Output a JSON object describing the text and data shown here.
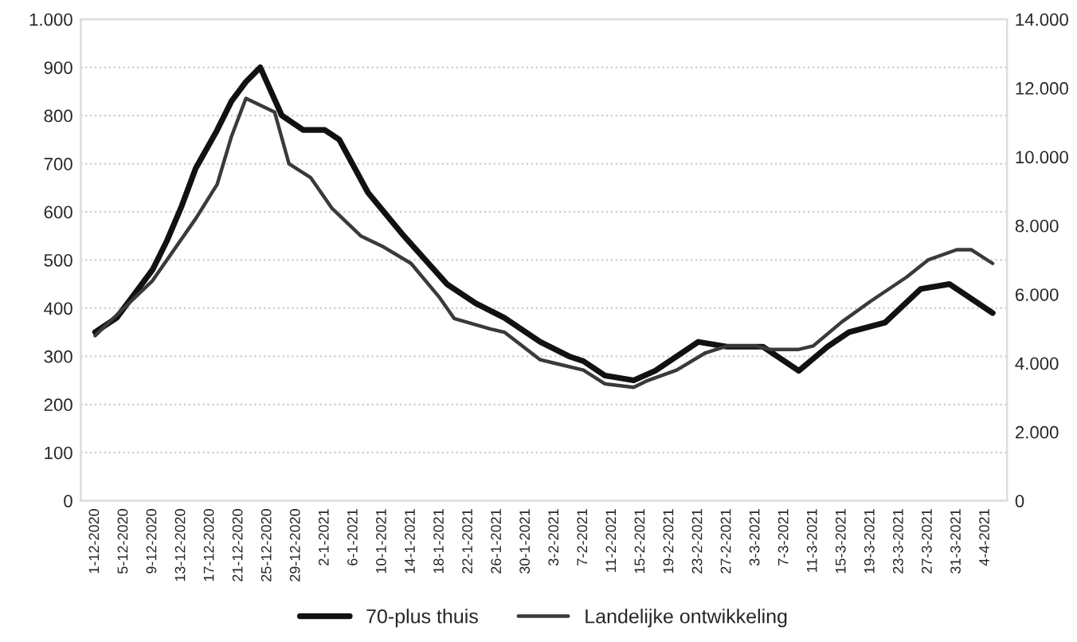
{
  "chart_data": {
    "type": "line",
    "legend": "bottom",
    "grid": "y",
    "marker": "none",
    "line_style": "solid",
    "xlim": [
      "2020-11-29",
      "2021-04-07"
    ],
    "xticks": [
      {
        "value": "2020-12-01",
        "label": "1-12-2020"
      },
      {
        "value": "2020-12-05",
        "label": "5-12-2020"
      },
      {
        "value": "2020-12-09",
        "label": "9-12-2020"
      },
      {
        "value": "2020-12-13",
        "label": "13-12-2020"
      },
      {
        "value": "2020-12-17",
        "label": "17-12-2020"
      },
      {
        "value": "2020-12-21",
        "label": "21-12-2020"
      },
      {
        "value": "2020-12-25",
        "label": "25-12-2020"
      },
      {
        "value": "2020-12-29",
        "label": "29-12-2020"
      },
      {
        "value": "2021-01-02",
        "label": "2-1-2021"
      },
      {
        "value": "2021-01-06",
        "label": "6-1-2021"
      },
      {
        "value": "2021-01-10",
        "label": "10-1-2021"
      },
      {
        "value": "2021-01-14",
        "label": "14-1-2021"
      },
      {
        "value": "2021-01-18",
        "label": "18-1-2021"
      },
      {
        "value": "2021-01-22",
        "label": "22-1-2021"
      },
      {
        "value": "2021-01-26",
        "label": "26-1-2021"
      },
      {
        "value": "2021-01-30",
        "label": "30-1-2021"
      },
      {
        "value": "2021-02-03",
        "label": "3-2-2021"
      },
      {
        "value": "2021-02-07",
        "label": "7-2-2021"
      },
      {
        "value": "2021-02-11",
        "label": "11-2-2021"
      },
      {
        "value": "2021-02-15",
        "label": "15-2-2021"
      },
      {
        "value": "2021-02-19",
        "label": "19-2-2021"
      },
      {
        "value": "2021-02-23",
        "label": "23-2-2021"
      },
      {
        "value": "2021-02-27",
        "label": "27-2-2021"
      },
      {
        "value": "2021-03-03",
        "label": "3-3-2021"
      },
      {
        "value": "2021-03-07",
        "label": "7-3-2021"
      },
      {
        "value": "2021-03-11",
        "label": "11-3-2021"
      },
      {
        "value": "2021-03-15",
        "label": "15-3-2021"
      },
      {
        "value": "2021-03-19",
        "label": "19-3-2021"
      },
      {
        "value": "2021-03-23",
        "label": "23-3-2021"
      },
      {
        "value": "2021-03-27",
        "label": "27-3-2021"
      },
      {
        "value": "2021-03-31",
        "label": "31-3-2021"
      },
      {
        "value": "2021-04-04",
        "label": "4-4-2021"
      }
    ],
    "ylim": [
      0,
      1000
    ],
    "yticks": [
      0,
      100,
      200,
      300,
      400,
      500,
      600,
      700,
      800,
      900,
      {
        "value": 1000,
        "label": "1.000"
      }
    ],
    "y2lim": [
      0,
      14000
    ],
    "y2ticks": [
      0,
      {
        "value": 2000,
        "label": "2.000"
      },
      {
        "value": 4000,
        "label": "4.000"
      },
      {
        "value": 6000,
        "label": "6.000"
      },
      {
        "value": 8000,
        "label": "8.000"
      },
      {
        "value": 10000,
        "label": "10.000"
      },
      {
        "value": 12000,
        "label": "12.000"
      },
      {
        "value": 14000,
        "label": "14.000"
      }
    ],
    "series": [
      {
        "name": "70-plus thuis",
        "color": "#111111",
        "x": [
          "2020-12-01",
          "2020-12-04",
          "2020-12-06",
          "2020-12-09",
          "2020-12-11",
          "2020-12-13",
          "2020-12-15",
          "2020-12-18",
          "2020-12-20",
          "2020-12-22",
          "2020-12-24",
          "2020-12-27",
          "2020-12-30",
          "2021-01-02",
          "2021-01-04",
          "2021-01-08",
          "2021-01-13",
          "2021-01-16",
          "2021-01-19",
          "2021-01-23",
          "2021-01-27",
          "2021-02-01",
          "2021-02-05",
          "2021-02-07",
          "2021-02-10",
          "2021-02-14",
          "2021-02-17",
          "2021-02-23",
          "2021-02-27",
          "2021-03-04",
          "2021-03-09",
          "2021-03-13",
          "2021-03-16",
          "2021-03-21",
          "2021-03-26",
          "2021-03-30",
          "2021-04-01",
          "2021-04-05"
        ],
        "values": [
          350,
          380,
          420,
          480,
          540,
          610,
          690,
          770,
          830,
          870,
          900,
          800,
          770,
          770,
          750,
          640,
          550,
          500,
          450,
          410,
          380,
          330,
          300,
          290,
          260,
          250,
          270,
          330,
          320,
          320,
          270,
          320,
          350,
          370,
          440,
          450,
          430,
          390
        ]
      },
      {
        "name": "Landelijke ontwikkeling",
        "color": "#3a3a3a",
        "axis": "y2",
        "x": [
          "2020-12-01",
          "2020-12-04",
          "2020-12-09",
          "2020-12-15",
          "2020-12-18",
          "2020-12-20",
          "2020-12-22",
          "2020-12-26",
          "2020-12-28",
          "2020-12-31",
          "2021-01-03",
          "2021-01-07",
          "2021-01-10",
          "2021-01-14",
          "2021-01-18",
          "2021-01-20",
          "2021-01-25",
          "2021-01-27",
          "2021-02-01",
          "2021-02-03",
          "2021-02-07",
          "2021-02-10",
          "2021-02-14",
          "2021-02-16",
          "2021-02-20",
          "2021-02-24",
          "2021-02-27",
          "2021-03-03",
          "2021-03-05",
          "2021-03-09",
          "2021-03-11",
          "2021-03-15",
          "2021-03-19",
          "2021-03-24",
          "2021-03-27",
          "2021-03-31",
          "2021-04-02",
          "2021-04-05"
        ],
        "values": [
          4800,
          5400,
          6400,
          8200,
          9200,
          10600,
          11700,
          11300,
          9800,
          9400,
          8500,
          7700,
          7400,
          6900,
          5900,
          5300,
          5000,
          4900,
          4100,
          4000,
          3800,
          3400,
          3300,
          3500,
          3800,
          4300,
          4500,
          4500,
          4400,
          4400,
          4500,
          5200,
          5800,
          6500,
          7000,
          7300,
          7300,
          6900
        ]
      }
    ]
  }
}
